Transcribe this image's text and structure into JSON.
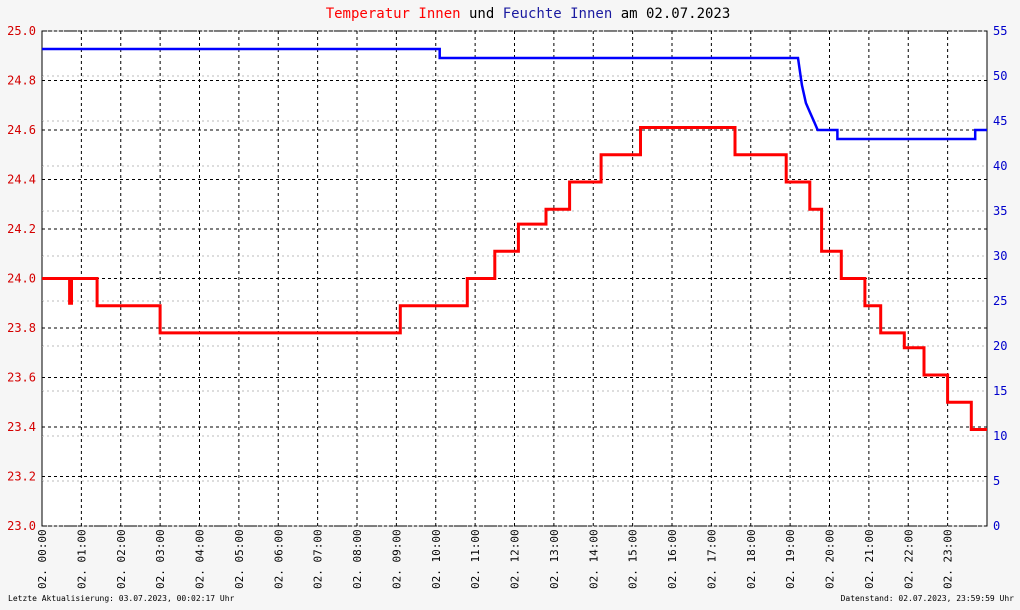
{
  "title": {
    "part1": "Temperatur Innen",
    "part2": " und ",
    "part3": "Feuchte Innen",
    "part4": " am 02.07.2023"
  },
  "footer": {
    "left": "Letzte Aktualisierung: 03.07.2023, 00:02:17 Uhr",
    "right": "Datenstand: 02.07.2023, 23:59:59 Uhr"
  },
  "colors": {
    "temperature": "#ff0000",
    "humidity": "#0000ff",
    "grid": "#000000",
    "background": "#ffffff"
  },
  "chart_data": {
    "type": "line",
    "title": "Temperatur Innen und Feuchte Innen am 02.07.2023",
    "grid": true,
    "x_unit": "hours",
    "xlim": [
      0,
      24
    ],
    "x_ticks": [
      "02. 00:00",
      "02. 01:00",
      "02. 02:00",
      "02. 03:00",
      "02. 04:00",
      "02. 05:00",
      "02. 06:00",
      "02. 07:00",
      "02. 08:00",
      "02. 09:00",
      "02. 10:00",
      "02. 11:00",
      "02. 12:00",
      "02. 13:00",
      "02. 14:00",
      "02. 15:00",
      "02. 16:00",
      "02. 17:00",
      "02. 18:00",
      "02. 19:00",
      "02. 20:00",
      "02. 21:00",
      "02. 22:00",
      "02. 23:00"
    ],
    "y_left": {
      "range": [
        23.0,
        25.0
      ],
      "ticks": [
        "23.0",
        "23.2",
        "23.4",
        "23.6",
        "23.8",
        "24.0",
        "24.2",
        "24.4",
        "24.6",
        "24.8",
        "25.0"
      ]
    },
    "y_right": {
      "range": [
        0,
        55
      ],
      "ticks": [
        "0",
        "5",
        "10",
        "15",
        "20",
        "25",
        "30",
        "35",
        "40",
        "45",
        "50",
        "55"
      ]
    },
    "series": [
      {
        "name": "Temperatur Innen",
        "axis": "left",
        "color": "#ff0000",
        "x": [
          0.0,
          0.7,
          0.7,
          0.75,
          0.75,
          1.4,
          1.4,
          3.0,
          3.0,
          4.5,
          4.5,
          6.0,
          6.0,
          9.1,
          9.1,
          10.8,
          10.8,
          11.2,
          11.2,
          11.5,
          11.5,
          12.1,
          12.1,
          12.8,
          12.8,
          13.4,
          13.4,
          14.2,
          14.2,
          15.2,
          15.2,
          16.0,
          16.0,
          17.6,
          17.6,
          18.9,
          18.9,
          19.5,
          19.5,
          19.8,
          19.8,
          20.3,
          20.3,
          20.9,
          20.9,
          21.3,
          21.3,
          21.9,
          21.9,
          22.4,
          22.4,
          23.0,
          23.0,
          23.6,
          23.6,
          24.0
        ],
        "y": [
          24.0,
          24.0,
          23.9,
          23.9,
          24.0,
          24.0,
          23.89,
          23.89,
          23.78,
          23.78,
          23.78,
          23.78,
          23.78,
          23.78,
          23.89,
          23.89,
          24.0,
          24.0,
          24.0,
          24.0,
          24.11,
          24.11,
          24.22,
          24.22,
          24.28,
          24.28,
          24.39,
          24.39,
          24.5,
          24.5,
          24.61,
          24.61,
          24.61,
          24.61,
          24.5,
          24.5,
          24.39,
          24.39,
          24.28,
          24.28,
          24.11,
          24.11,
          24.0,
          24.0,
          23.89,
          23.89,
          23.78,
          23.78,
          23.72,
          23.72,
          23.61,
          23.61,
          23.5,
          23.5,
          23.39,
          23.39
        ]
      },
      {
        "name": "Feuchte Innen",
        "axis": "right",
        "color": "#0000ff",
        "x": [
          0.0,
          10.1,
          10.1,
          10.4,
          10.4,
          10.9,
          10.9,
          19.2,
          19.3,
          19.4,
          19.5,
          19.6,
          19.7,
          19.8,
          19.8,
          20.2,
          20.2,
          20.6,
          20.6,
          23.7,
          23.7,
          24.0
        ],
        "y": [
          53,
          53,
          52,
          52,
          52,
          52,
          52,
          52,
          49,
          47,
          46,
          45,
          44,
          44,
          44,
          44,
          43,
          43,
          43,
          43,
          44,
          44
        ]
      }
    ]
  }
}
